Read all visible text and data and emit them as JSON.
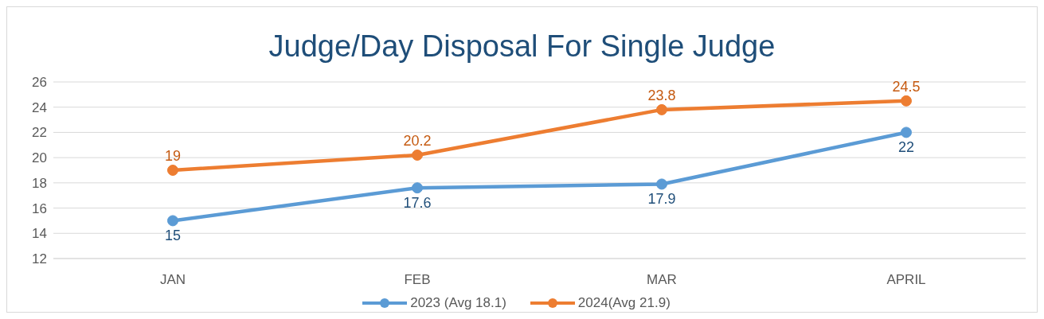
{
  "chart_data": {
    "type": "line",
    "title": "Judge/Day Disposal For Single Judge",
    "categories": [
      "JAN",
      "FEB",
      "MAR",
      "APRIL"
    ],
    "series": [
      {
        "name": "2023 (Avg 18.1)",
        "color": "#5b9bd5",
        "values": [
          15,
          17.6,
          17.9,
          22
        ]
      },
      {
        "name": "2024(Avg 21.9)",
        "color": "#ed7d31",
        "values": [
          19,
          20.2,
          23.8,
          24.5
        ]
      }
    ],
    "ylim": [
      12,
      26
    ],
    "yticks": [
      12,
      14,
      16,
      18,
      20,
      22,
      24,
      26
    ],
    "grid": "y",
    "legend": "bottom",
    "marker": "circle",
    "line_style": "solid",
    "data_labels": true
  }
}
